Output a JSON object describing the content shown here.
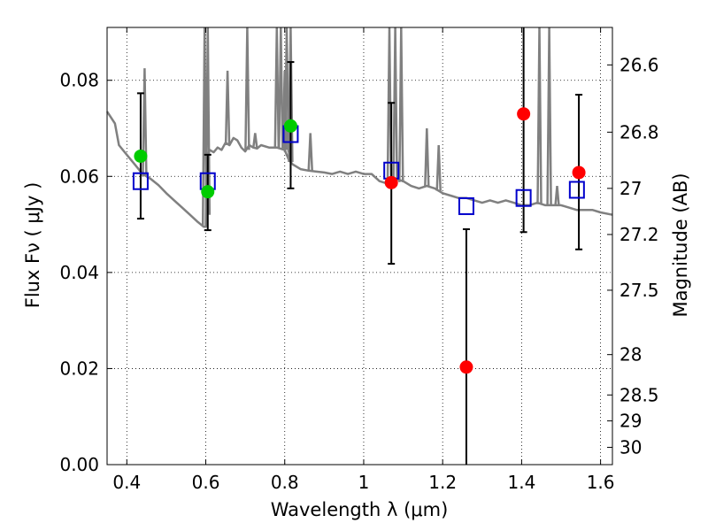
{
  "chart_data": {
    "type": "scatter",
    "xlabel": "Wavelength  λ (μm)",
    "ylabel": "Flux  Fν  ( μJy )",
    "y2label": "Magnitude (AB)",
    "xlim": [
      0.35,
      1.63
    ],
    "ylim": [
      0.0,
      0.091
    ],
    "grid": true,
    "x_ticks": [
      0.4,
      0.6,
      0.8,
      1.0,
      1.2,
      1.4,
      1.6
    ],
    "x_tick_labels": [
      "0.4",
      "0.6",
      "0.8",
      "1",
      "1.2",
      "1.4",
      "1.6"
    ],
    "y_ticks": [
      0.0,
      0.02,
      0.04,
      0.06,
      0.08
    ],
    "y_tick_labels": [
      "0.00",
      "0.02",
      "0.04",
      "0.06",
      "0.08"
    ],
    "magnitude_ticks": [
      {
        "label": "26.6",
        "flux": 0.0832
      },
      {
        "label": "26.8",
        "flux": 0.0692
      },
      {
        "label": "27",
        "flux": 0.0575
      },
      {
        "label": "27.2",
        "flux": 0.0479
      },
      {
        "label": "27.5",
        "flux": 0.0363
      },
      {
        "label": "28",
        "flux": 0.0229
      },
      {
        "label": "28.5",
        "flux": 0.0145
      },
      {
        "label": "29",
        "flux": 0.0091
      },
      {
        "label": "30",
        "flux": 0.0036
      }
    ],
    "colors": {
      "sed_model": "#808080",
      "model_photometry": "#0000cc",
      "green_points": "#00cc00",
      "red_points": "#ff0000",
      "errorbar": "#000000"
    },
    "series": [
      {
        "name": "sed_model",
        "kind": "line",
        "x": [
          0.35,
          0.37,
          0.38,
          0.4,
          0.42,
          0.44,
          0.46,
          0.48,
          0.5,
          0.52,
          0.54,
          0.56,
          0.58,
          0.595,
          0.6,
          0.602,
          0.61,
          0.62,
          0.63,
          0.64,
          0.65,
          0.66,
          0.67,
          0.68,
          0.69,
          0.7,
          0.71,
          0.72,
          0.73,
          0.74,
          0.76,
          0.78,
          0.8,
          0.81,
          0.82,
          0.84,
          0.86,
          0.88,
          0.9,
          0.92,
          0.94,
          0.96,
          0.98,
          1.0,
          1.02,
          1.04,
          1.06,
          1.08,
          1.1,
          1.12,
          1.14,
          1.16,
          1.18,
          1.2,
          1.22,
          1.24,
          1.26,
          1.28,
          1.3,
          1.32,
          1.34,
          1.36,
          1.38,
          1.4,
          1.42,
          1.44,
          1.46,
          1.48,
          1.5,
          1.52,
          1.54,
          1.56,
          1.58,
          1.6,
          1.63
        ],
        "y": [
          0.0735,
          0.071,
          0.0665,
          0.0645,
          0.0625,
          0.0605,
          0.0595,
          0.0582,
          0.0565,
          0.055,
          0.0535,
          0.052,
          0.0505,
          0.0495,
          0.0495,
          0.064,
          0.0655,
          0.065,
          0.066,
          0.0655,
          0.067,
          0.0665,
          0.068,
          0.0675,
          0.066,
          0.0652,
          0.0665,
          0.066,
          0.0658,
          0.0665,
          0.066,
          0.066,
          0.0655,
          0.0635,
          0.0625,
          0.0615,
          0.0612,
          0.061,
          0.0608,
          0.0605,
          0.061,
          0.0605,
          0.061,
          0.0605,
          0.0605,
          0.059,
          0.0585,
          0.0595,
          0.059,
          0.058,
          0.0575,
          0.058,
          0.0575,
          0.0565,
          0.056,
          0.0555,
          0.0555,
          0.055,
          0.0545,
          0.055,
          0.0545,
          0.055,
          0.0545,
          0.054,
          0.054,
          0.0545,
          0.054,
          0.054,
          0.054,
          0.0535,
          0.053,
          0.053,
          0.053,
          0.0525,
          0.052
        ]
      },
      {
        "name": "emission_lines",
        "kind": "spikes",
        "lines": [
          {
            "x": 0.445,
            "base": 0.06,
            "peak": 0.0825
          },
          {
            "x": 0.597,
            "base": 0.0495,
            "peak": 0.095
          },
          {
            "x": 0.605,
            "base": 0.052,
            "peak": 0.095
          },
          {
            "x": 0.655,
            "base": 0.0665,
            "peak": 0.082
          },
          {
            "x": 0.705,
            "base": 0.0655,
            "peak": 0.095
          },
          {
            "x": 0.725,
            "base": 0.066,
            "peak": 0.069
          },
          {
            "x": 0.78,
            "base": 0.066,
            "peak": 0.095
          },
          {
            "x": 0.79,
            "base": 0.0658,
            "peak": 0.095
          },
          {
            "x": 0.8,
            "base": 0.0655,
            "peak": 0.082
          },
          {
            "x": 0.805,
            "base": 0.065,
            "peak": 0.095
          },
          {
            "x": 0.815,
            "base": 0.063,
            "peak": 0.095
          },
          {
            "x": 0.865,
            "base": 0.0612,
            "peak": 0.069
          },
          {
            "x": 1.065,
            "base": 0.0588,
            "peak": 0.095
          },
          {
            "x": 1.08,
            "base": 0.0592,
            "peak": 0.095
          },
          {
            "x": 1.095,
            "base": 0.0588,
            "peak": 0.095
          },
          {
            "x": 1.16,
            "base": 0.0578,
            "peak": 0.07
          },
          {
            "x": 1.19,
            "base": 0.057,
            "peak": 0.0665
          },
          {
            "x": 1.445,
            "base": 0.0542,
            "peak": 0.095
          },
          {
            "x": 1.47,
            "base": 0.054,
            "peak": 0.095
          },
          {
            "x": 1.49,
            "base": 0.0538,
            "peak": 0.058
          }
        ]
      },
      {
        "name": "model_photometry",
        "kind": "open_square",
        "x": [
          0.435,
          0.605,
          0.815,
          1.07,
          1.26,
          1.405,
          1.54
        ],
        "y": [
          0.059,
          0.059,
          0.0688,
          0.0612,
          0.0538,
          0.0555,
          0.0572
        ]
      },
      {
        "name": "observed_green",
        "kind": "filled_circle",
        "x": [
          0.435,
          0.605,
          0.815
        ],
        "y": [
          0.0642,
          0.0568,
          0.0705
        ]
      },
      {
        "name": "observed_red",
        "kind": "filled_circle",
        "x": [
          1.07,
          1.26,
          1.405,
          1.545
        ],
        "y": [
          0.0587,
          0.0203,
          0.073,
          0.0608
        ]
      },
      {
        "name": "error_bars",
        "kind": "errorbar",
        "x": [
          0.435,
          0.605,
          0.815,
          1.07,
          1.26,
          1.405,
          1.545
        ],
        "low": [
          0.0512,
          0.0488,
          0.0575,
          0.0418,
          0.0,
          0.0484,
          0.0448
        ],
        "high": [
          0.0773,
          0.0645,
          0.0838,
          0.0753,
          0.049,
          0.095,
          0.077
        ]
      }
    ]
  }
}
